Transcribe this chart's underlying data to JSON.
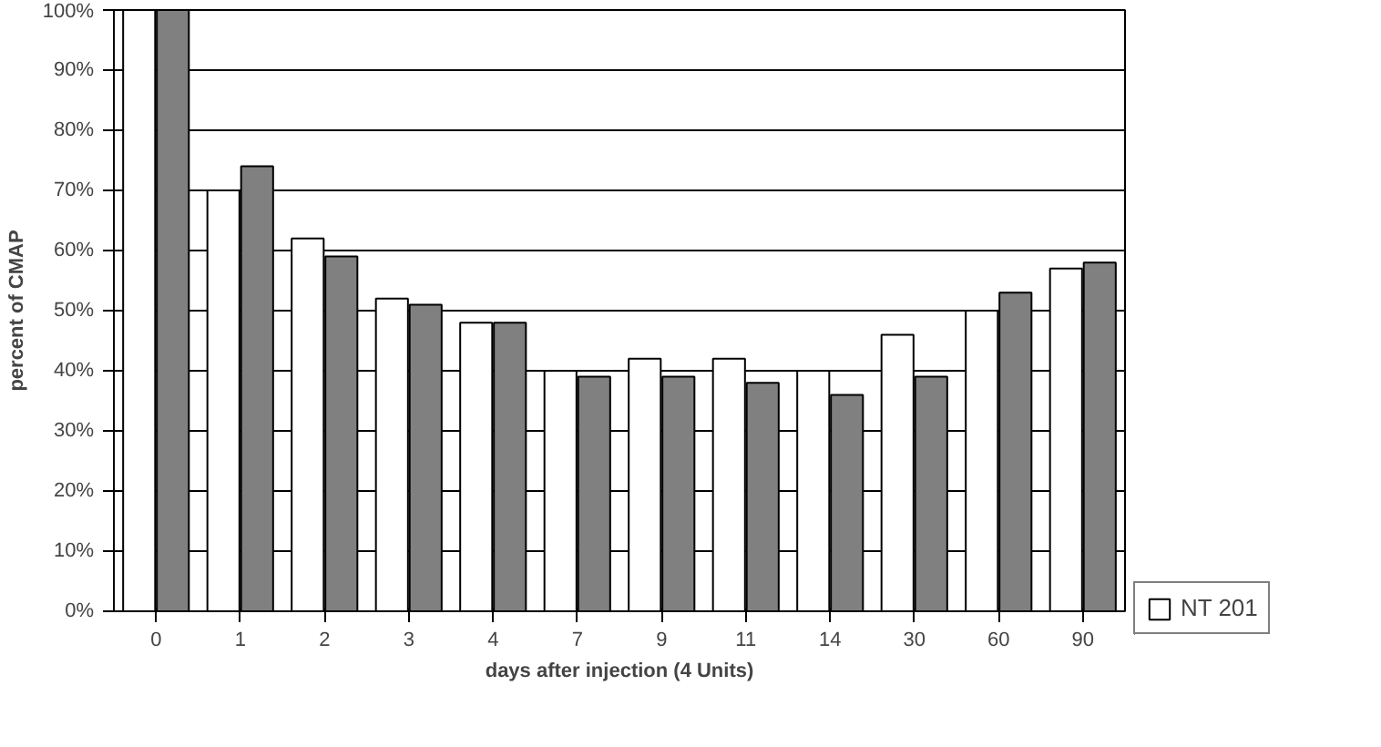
{
  "chart_data": {
    "type": "bar",
    "xlabel": "days after injection (4 Units)",
    "ylabel": "percent of CMAP",
    "categories": [
      "0",
      "1",
      "2",
      "3",
      "4",
      "7",
      "9",
      "11",
      "14",
      "30",
      "60",
      "90"
    ],
    "series": [
      {
        "name": "NT 201",
        "color": "#ffffff",
        "values": [
          100,
          70,
          62,
          52,
          48,
          40,
          42,
          42,
          40,
          46,
          50,
          57
        ]
      },
      {
        "color": "#808080",
        "values": [
          100,
          74,
          59,
          51,
          48,
          39,
          39,
          38,
          36,
          39,
          53,
          58
        ]
      }
    ],
    "ylim": [
      0,
      100
    ],
    "yticks": [
      {
        "value": 0,
        "label": "0%"
      },
      {
        "value": 10,
        "label": "10%"
      },
      {
        "value": 20,
        "label": "20%"
      },
      {
        "value": 30,
        "label": "30%"
      },
      {
        "value": 40,
        "label": "40%"
      },
      {
        "value": 50,
        "label": "50%"
      },
      {
        "value": 60,
        "label": "60%"
      },
      {
        "value": 70,
        "label": "70%"
      },
      {
        "value": 80,
        "label": "80%"
      },
      {
        "value": 90,
        "label": "90%"
      },
      {
        "value": 100,
        "label": "100%"
      }
    ],
    "grid": "y",
    "legend": "right"
  }
}
